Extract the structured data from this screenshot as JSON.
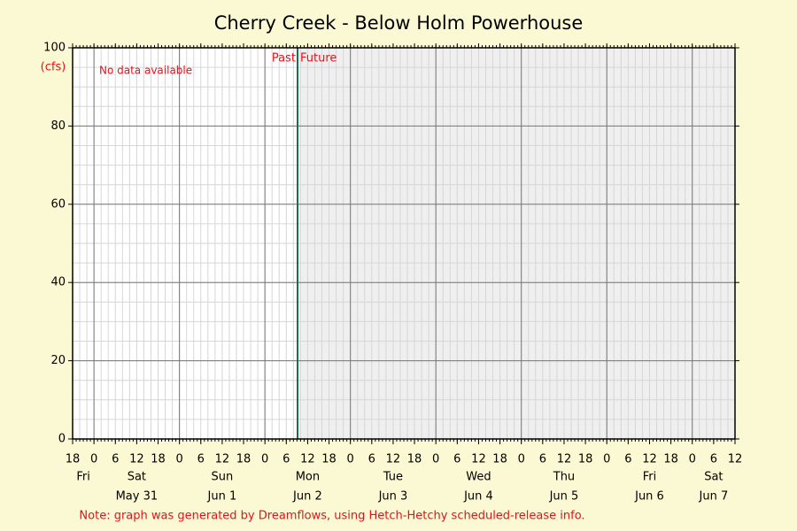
{
  "chart_data": {
    "type": "line",
    "title": "Cherry Creek - Below Holm Powerhouse",
    "y_unit": "(cfs)",
    "ylim": [
      0,
      100
    ],
    "yticks": [
      0,
      20,
      40,
      60,
      80,
      100
    ],
    "grid": true,
    "series": [],
    "no_data_text": "No data available",
    "past_label": "Past",
    "future_label": "Future",
    "hour_ticks": [
      18,
      0,
      6,
      12,
      18,
      0,
      6,
      12,
      18,
      0,
      6,
      12,
      18,
      0,
      6,
      12,
      18,
      0,
      6,
      12,
      18,
      0,
      6,
      12,
      18,
      0,
      6,
      12,
      18,
      0,
      6,
      12
    ],
    "days": [
      {
        "day": "Fri",
        "date": null
      },
      {
        "day": "Sat",
        "date": "May 31"
      },
      {
        "day": "Sun",
        "date": "Jun 1"
      },
      {
        "day": "Mon",
        "date": "Jun 2"
      },
      {
        "day": "Tue",
        "date": "Jun 3"
      },
      {
        "day": "Wed",
        "date": "Jun 4"
      },
      {
        "day": "Thu",
        "date": "Jun 5"
      },
      {
        "day": "Fri",
        "date": "Jun 6"
      },
      {
        "day": "Sat",
        "date": "Jun 7"
      }
    ],
    "note": "Note: graph was generated by Dreamflows, using Hetch-Hetchy scheduled-release info."
  }
}
